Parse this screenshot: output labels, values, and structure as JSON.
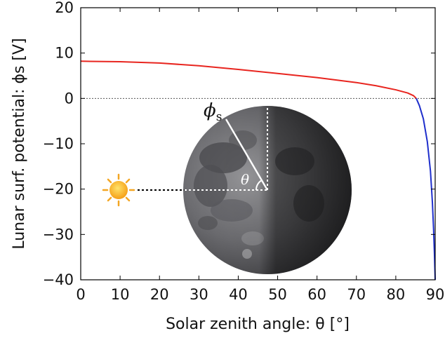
{
  "chart_data": {
    "type": "line",
    "xlabel": "Solar zenith angle: θ [°]",
    "ylabel": "Lunar surf. potential: ϕs [V]",
    "xlim": [
      0,
      90
    ],
    "ylim": [
      -40,
      20
    ],
    "xticks": [
      0,
      10,
      20,
      30,
      40,
      50,
      60,
      70,
      80,
      90
    ],
    "yticks": [
      20,
      10,
      0,
      -10,
      -20,
      -30,
      -40
    ],
    "grid": false,
    "reference_line": {
      "y": 0,
      "style": "dotted",
      "color": "#555555"
    },
    "series": [
      {
        "color": "#e8251f",
        "points": [
          [
            0,
            8.2
          ],
          [
            10,
            8.1
          ],
          [
            20,
            7.8
          ],
          [
            30,
            7.2
          ],
          [
            40,
            6.4
          ],
          [
            50,
            5.5
          ],
          [
            60,
            4.6
          ],
          [
            70,
            3.5
          ],
          [
            75,
            2.8
          ],
          [
            80,
            1.9
          ],
          [
            83,
            1.2
          ],
          [
            84.5,
            0.6
          ],
          [
            85.2,
            0
          ]
        ]
      },
      {
        "color": "#1f2fcc",
        "points": [
          [
            85.2,
            0
          ],
          [
            86,
            -1.6
          ],
          [
            87,
            -4.5
          ],
          [
            88,
            -9.5
          ],
          [
            88.8,
            -16
          ],
          [
            89.3,
            -23
          ],
          [
            89.6,
            -29
          ],
          [
            89.8,
            -34
          ],
          [
            90,
            -40
          ]
        ]
      }
    ]
  },
  "inset": {
    "theta_label": "θ",
    "phi_label": "ϕ",
    "phi_subscript": "s",
    "colors": {
      "sun_core": "#f7b21c",
      "sun_rays": "#f3a623",
      "moon_dark": "#2e2e30",
      "moon_light": "#8f8f92"
    }
  }
}
